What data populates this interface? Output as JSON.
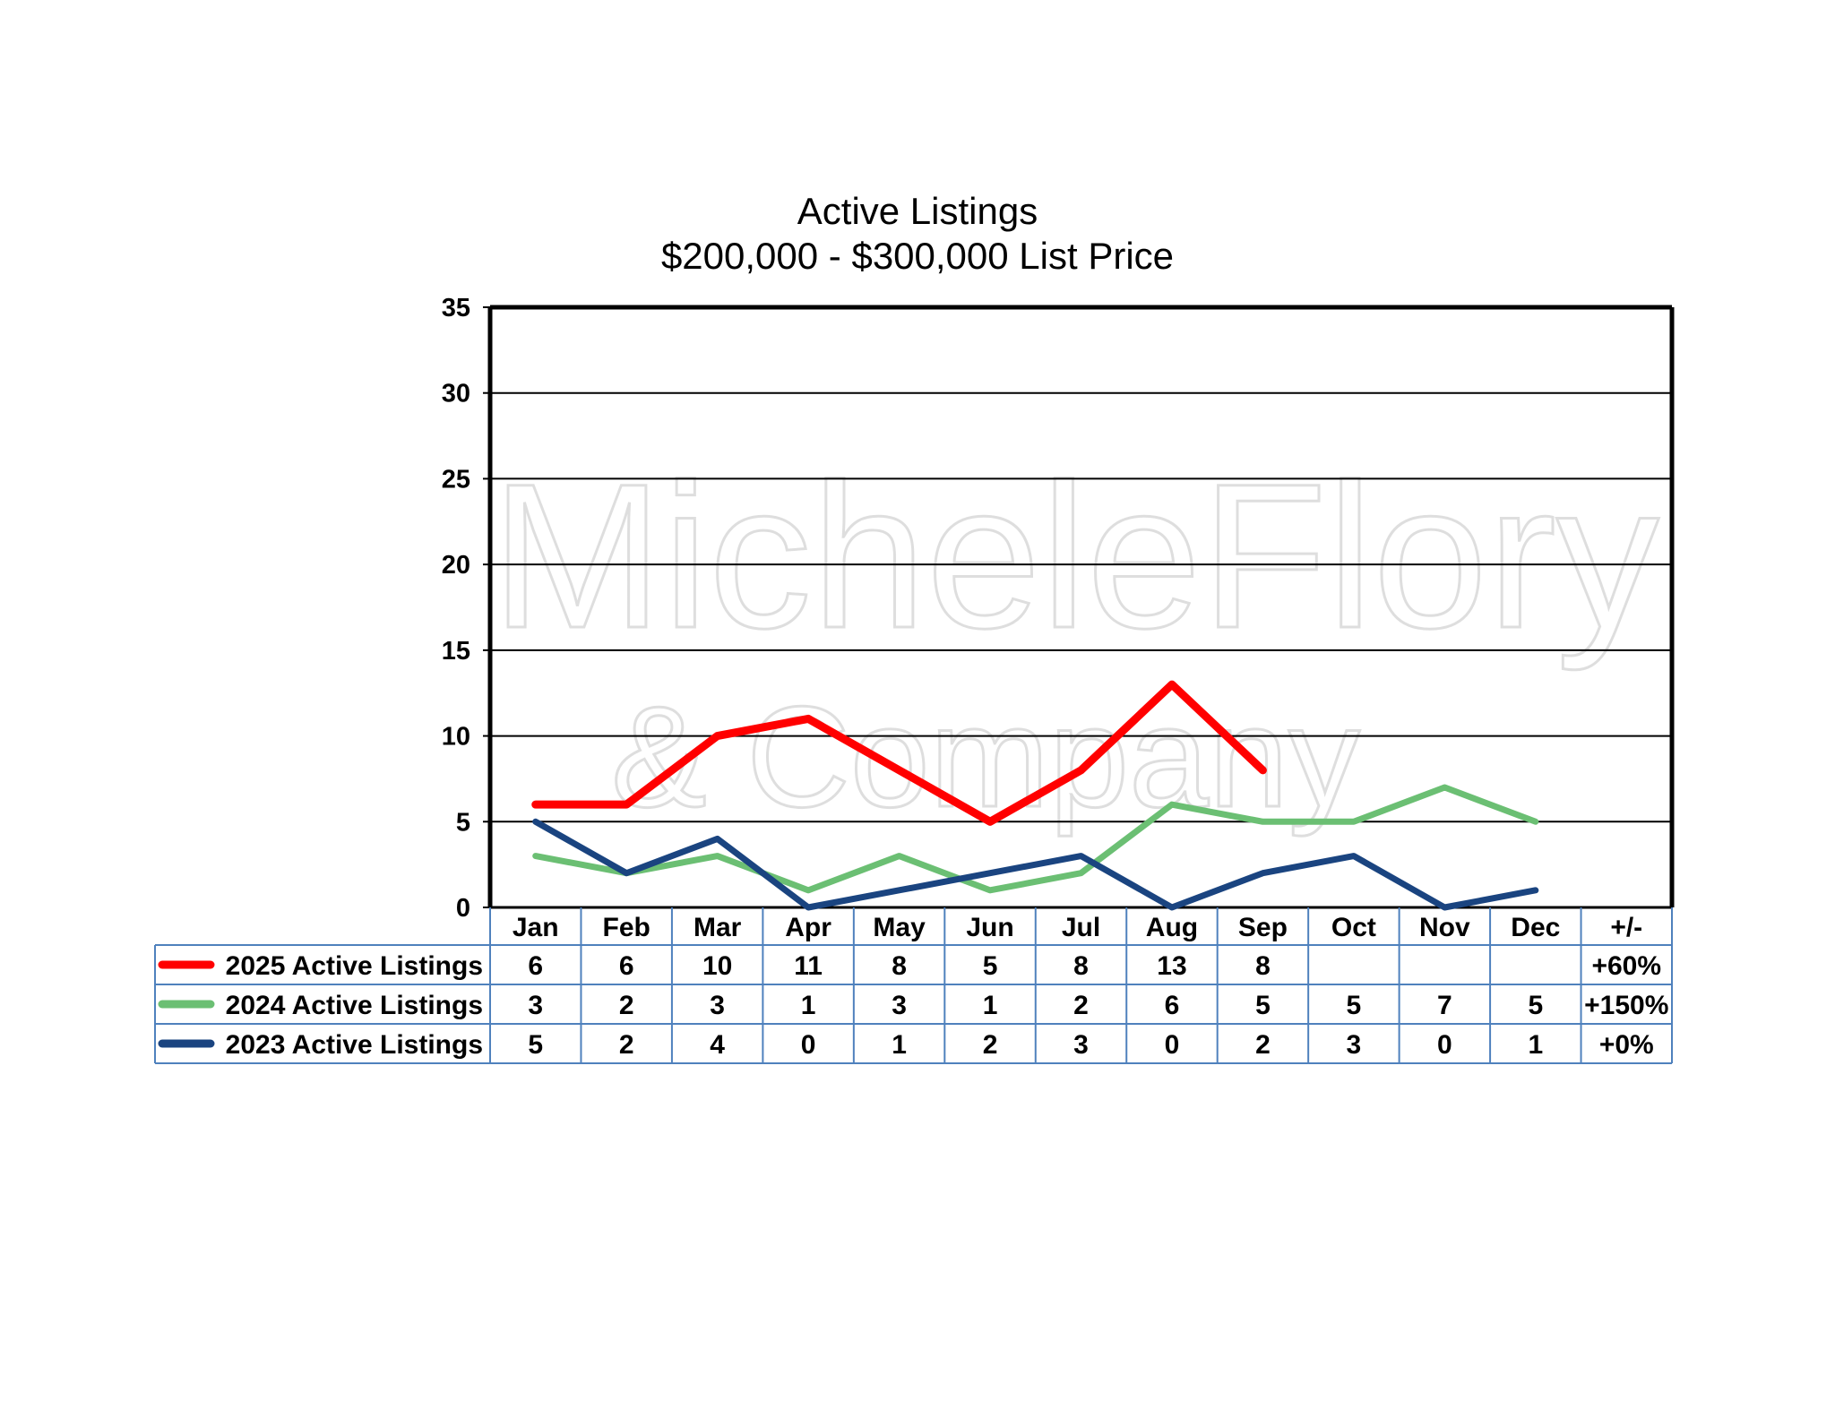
{
  "watermark": {
    "line1": "MicheleFlory",
    "line2": "& Company"
  },
  "chart_data": {
    "type": "line",
    "title": "Active Listings",
    "subtitle": "$200,000 - $300,000 List Price",
    "categories": [
      "Jan",
      "Feb",
      "Mar",
      "Apr",
      "May",
      "Jun",
      "Jul",
      "Aug",
      "Sep",
      "Oct",
      "Nov",
      "Dec"
    ],
    "change_header": "+/-",
    "ylim": [
      0,
      35
    ],
    "yticks": [
      "0",
      "5",
      "10",
      "15",
      "20",
      "25",
      "30",
      "35"
    ],
    "grid": true,
    "series": [
      {
        "name": "2025 Active Listings",
        "color": "#ff0000",
        "values": [
          6,
          6,
          10,
          11,
          8,
          5,
          8,
          13,
          8,
          null,
          null,
          null
        ],
        "change": "+60%"
      },
      {
        "name": "2024 Active Listings",
        "color": "#6bbf73",
        "values": [
          3,
          2,
          3,
          1,
          3,
          1,
          2,
          6,
          5,
          5,
          7,
          5
        ],
        "change": "+150%"
      },
      {
        "name": "2023 Active Listings",
        "color": "#1a4480",
        "values": [
          5,
          2,
          4,
          0,
          1,
          2,
          3,
          0,
          2,
          3,
          0,
          1
        ],
        "change": "+0%"
      }
    ]
  }
}
